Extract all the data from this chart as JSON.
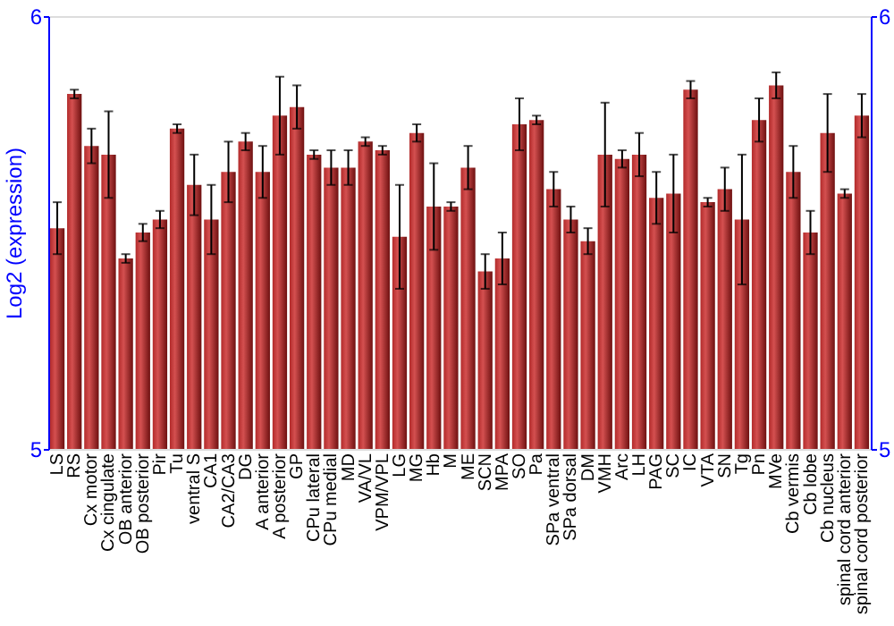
{
  "chart_data": {
    "type": "bar",
    "ylabel": "Log2 (expression)",
    "categories": [
      "LS",
      "RS",
      "Cx motor",
      "Cx cingulate",
      "OB anterior",
      "OB posterior",
      "Pir",
      "Tu",
      "ventral S",
      "CA1",
      "CA2/CA3",
      "DG",
      "A anterior",
      "A posterior",
      "GP",
      "CPu lateral",
      "CPu medial",
      "MD",
      "VA/VL",
      "VPM/VPL",
      "LG",
      "MG",
      "Hb",
      "M",
      "ME",
      "SCN",
      "MPA",
      "SO",
      "Pa",
      "SPa ventral",
      "SPa dorsal",
      "DM",
      "VMH",
      "Arc",
      "LH",
      "PAG",
      "SC",
      "IC",
      "VTA",
      "SN",
      "Tg",
      "Pn",
      "MVe",
      "Cb vermis",
      "Cb lobe",
      "Cb nucleus",
      "spinal cord anterior",
      "spinal cord posterior"
    ],
    "values": [
      5.51,
      5.82,
      5.7,
      5.68,
      5.44,
      5.5,
      5.53,
      5.74,
      5.61,
      5.53,
      5.64,
      5.71,
      5.64,
      5.77,
      5.79,
      5.68,
      5.65,
      5.65,
      5.71,
      5.69,
      5.49,
      5.73,
      5.56,
      5.56,
      5.65,
      5.41,
      5.44,
      5.75,
      5.76,
      5.6,
      5.53,
      5.48,
      5.68,
      5.67,
      5.68,
      5.58,
      5.59,
      5.83,
      5.57,
      5.6,
      5.53,
      5.76,
      5.84,
      5.64,
      5.5,
      5.73,
      5.59,
      5.77
    ],
    "errors": [
      0.06,
      0.01,
      0.04,
      0.1,
      0.01,
      0.02,
      0.02,
      0.01,
      0.07,
      0.08,
      0.07,
      0.02,
      0.06,
      0.09,
      0.05,
      0.01,
      0.04,
      0.04,
      0.01,
      0.01,
      0.12,
      0.02,
      0.1,
      0.01,
      0.05,
      0.04,
      0.06,
      0.06,
      0.01,
      0.04,
      0.03,
      0.03,
      0.12,
      0.02,
      0.05,
      0.06,
      0.09,
      0.02,
      0.01,
      0.05,
      0.15,
      0.05,
      0.03,
      0.06,
      0.05,
      0.09,
      0.01,
      0.05
    ],
    "color": "#b22a2a",
    "ylim": [
      5,
      6
    ],
    "yticks": [
      5,
      6
    ],
    "y2lim": [
      5,
      6
    ],
    "y2ticks": [
      5,
      6
    ],
    "grid": false
  }
}
